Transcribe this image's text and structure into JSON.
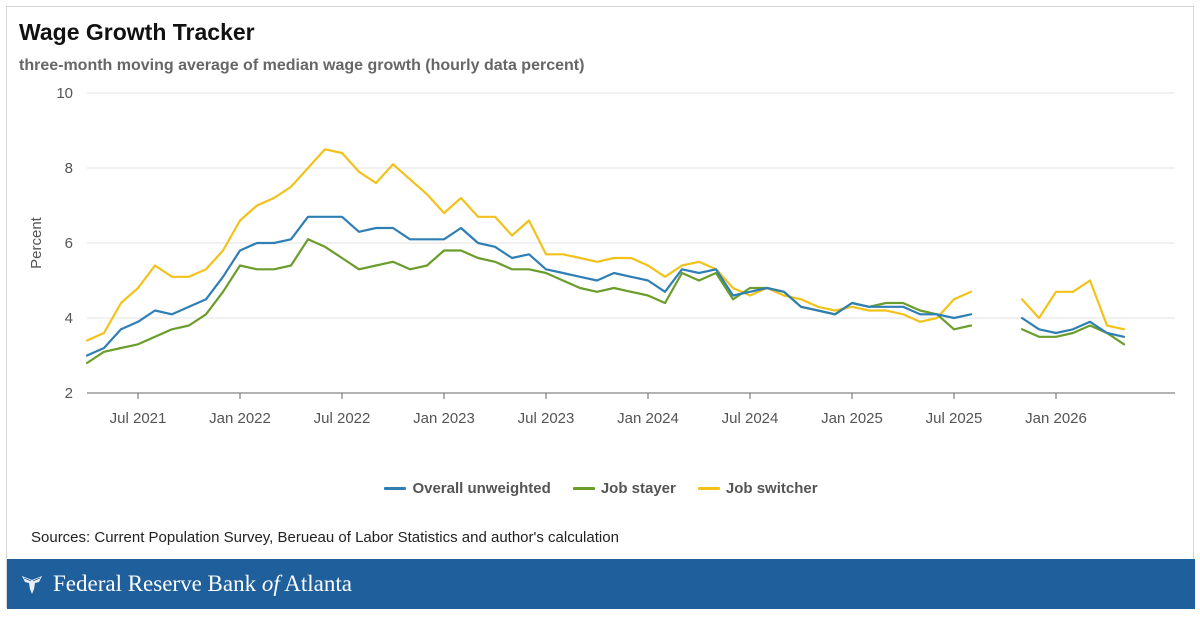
{
  "title": "Wage Growth Tracker",
  "subtitle": "three-month moving average of median wage growth (hourly data percent)",
  "sources": "Sources: Current Population Survey, Berueau of Labor Statistics and author's calculation",
  "footer": {
    "name_part1": "Federal Reserve Bank ",
    "name_of": "of",
    "name_part2": " Atlanta",
    "logo_icon": "eagle-icon"
  },
  "colors": {
    "overall": "#2f7fb5",
    "stayer": "#6a9d2b",
    "switcher": "#f2c21b",
    "grid": "#e3e3e3",
    "footer": "#1f5f9c"
  },
  "chart_data": {
    "type": "line",
    "ylabel": "Percent",
    "xlabel": "",
    "ylim": [
      2,
      10
    ],
    "yticks": [
      2,
      4,
      6,
      8,
      10
    ],
    "x_start": "2021-04",
    "x_end": "2026-08",
    "xtick_labels": [
      {
        "label": "Jul 2021",
        "date": "2021-07"
      },
      {
        "label": "Jan 2022",
        "date": "2022-01"
      },
      {
        "label": "Jul 2022",
        "date": "2022-07"
      },
      {
        "label": "Jan 2023",
        "date": "2023-01"
      },
      {
        "label": "Jul 2023",
        "date": "2023-07"
      },
      {
        "label": "Jan 2024",
        "date": "2024-01"
      },
      {
        "label": "Jul 2024",
        "date": "2024-07"
      },
      {
        "label": "Jan 2025",
        "date": "2025-01"
      },
      {
        "label": "Jul 2025",
        "date": "2025-07"
      },
      {
        "label": "Jan 2026",
        "date": "2026-01"
      }
    ],
    "grid": true,
    "legend_position": "bottom",
    "x": [
      "2021-04",
      "2021-05",
      "2021-06",
      "2021-07",
      "2021-08",
      "2021-09",
      "2021-10",
      "2021-11",
      "2021-12",
      "2022-01",
      "2022-02",
      "2022-03",
      "2022-04",
      "2022-05",
      "2022-06",
      "2022-07",
      "2022-08",
      "2022-09",
      "2022-10",
      "2022-11",
      "2022-12",
      "2023-01",
      "2023-02",
      "2023-03",
      "2023-04",
      "2023-05",
      "2023-06",
      "2023-07",
      "2023-08",
      "2023-09",
      "2023-10",
      "2023-11",
      "2023-12",
      "2024-01",
      "2024-02",
      "2024-03",
      "2024-04",
      "2024-05",
      "2024-06",
      "2024-07",
      "2024-08",
      "2024-09",
      "2024-10",
      "2024-11",
      "2024-12",
      "2025-01",
      "2025-02",
      "2025-03",
      "2025-04",
      "2025-05",
      "2025-06",
      "2025-07",
      "2025-08",
      "2025-09",
      "2025-10",
      "2025-11",
      "2025-12",
      "2026-01",
      "2026-02",
      "2026-03",
      "2026-04",
      "2026-05",
      "2026-06"
    ],
    "series": [
      {
        "name": "Overall unweighted",
        "color_key": "overall",
        "values": [
          3.0,
          3.2,
          3.7,
          3.9,
          4.2,
          4.1,
          4.3,
          4.5,
          5.1,
          5.8,
          6.0,
          6.0,
          6.1,
          6.7,
          6.7,
          6.7,
          6.3,
          6.4,
          6.4,
          6.1,
          6.1,
          6.1,
          6.4,
          6.0,
          5.9,
          5.6,
          5.7,
          5.3,
          5.2,
          5.1,
          5.0,
          5.2,
          5.1,
          5.0,
          4.7,
          5.3,
          5.2,
          5.3,
          4.6,
          4.7,
          4.8,
          4.7,
          4.3,
          4.2,
          4.1,
          4.4,
          4.3,
          4.3,
          4.3,
          4.1,
          4.1,
          4.0,
          4.1,
          null,
          null,
          4.0,
          3.7,
          3.6,
          3.7,
          3.9,
          3.6,
          3.5,
          null
        ]
      },
      {
        "name": "Job stayer",
        "color_key": "stayer",
        "values": [
          2.8,
          3.1,
          3.2,
          3.3,
          3.5,
          3.7,
          3.8,
          4.1,
          4.7,
          5.4,
          5.3,
          5.3,
          5.4,
          6.1,
          5.9,
          5.6,
          5.3,
          5.4,
          5.5,
          5.3,
          5.4,
          5.8,
          5.8,
          5.6,
          5.5,
          5.3,
          5.3,
          5.2,
          5.0,
          4.8,
          4.7,
          4.8,
          4.7,
          4.6,
          4.4,
          5.2,
          5.0,
          5.2,
          4.5,
          4.8,
          4.8,
          4.7,
          4.3,
          4.2,
          4.1,
          4.4,
          4.3,
          4.4,
          4.4,
          4.2,
          4.1,
          3.7,
          3.8,
          null,
          null,
          3.7,
          3.5,
          3.5,
          3.6,
          3.8,
          3.6,
          3.3,
          null
        ]
      },
      {
        "name": "Job switcher",
        "color_key": "switcher",
        "values": [
          3.4,
          3.6,
          4.4,
          4.8,
          5.4,
          5.1,
          5.1,
          5.3,
          5.8,
          6.6,
          7.0,
          7.2,
          7.5,
          8.0,
          8.5,
          8.4,
          7.9,
          7.6,
          8.1,
          7.7,
          7.3,
          6.8,
          7.2,
          6.7,
          6.7,
          6.2,
          6.6,
          5.7,
          5.7,
          5.6,
          5.5,
          5.6,
          5.6,
          5.4,
          5.1,
          5.4,
          5.5,
          5.3,
          4.8,
          4.6,
          4.8,
          4.6,
          4.5,
          4.3,
          4.2,
          4.3,
          4.2,
          4.2,
          4.1,
          3.9,
          4.0,
          4.5,
          4.7,
          null,
          null,
          4.5,
          4.0,
          4.7,
          4.7,
          5.0,
          3.8,
          3.7,
          null
        ]
      }
    ]
  }
}
